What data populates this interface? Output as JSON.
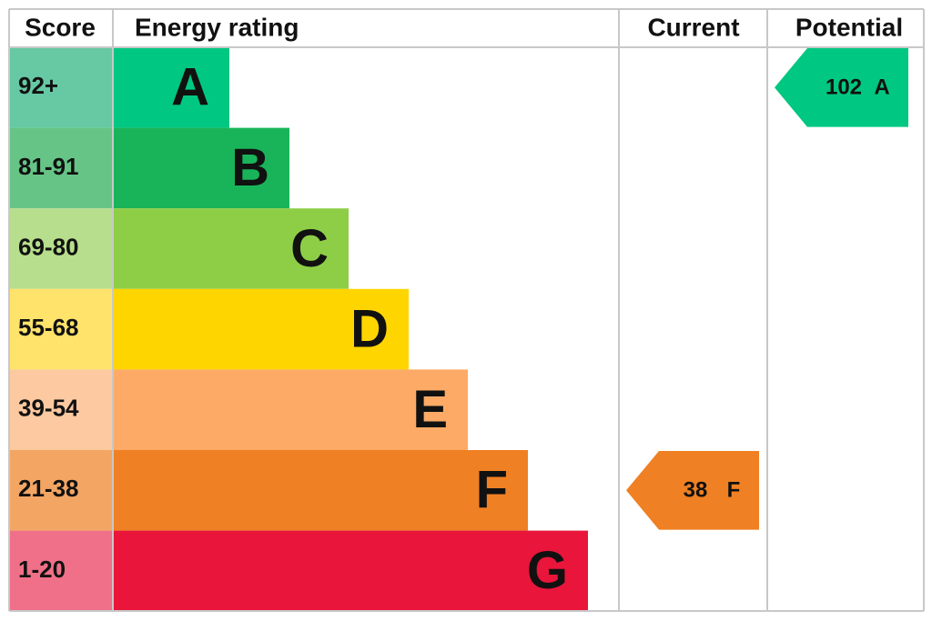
{
  "header": {
    "score": "Score",
    "rating": "Energy rating",
    "current": "Current",
    "potential": "Potential"
  },
  "bands": [
    {
      "score": "92+",
      "letter": "A",
      "color": "#00c781",
      "score_color": "#66c9a3"
    },
    {
      "score": "81-91",
      "letter": "B",
      "color": "#19b459",
      "score_color": "#66c586"
    },
    {
      "score": "69-80",
      "letter": "C",
      "color": "#8dce46",
      "score_color": "#b7de8c"
    },
    {
      "score": "55-68",
      "letter": "D",
      "color": "#ffd500",
      "score_color": "#ffe36a"
    },
    {
      "score": "39-54",
      "letter": "E",
      "color": "#fcaa65",
      "score_color": "#fcc9a0"
    },
    {
      "score": "21-38",
      "letter": "F",
      "color": "#ef8023",
      "score_color": "#f3a664"
    },
    {
      "score": "1-20",
      "letter": "G",
      "color": "#e9153b",
      "score_color": "#ef7088"
    }
  ],
  "current": {
    "value": 38,
    "letter": "F"
  },
  "potential": {
    "value": 102,
    "letter": "A"
  }
}
